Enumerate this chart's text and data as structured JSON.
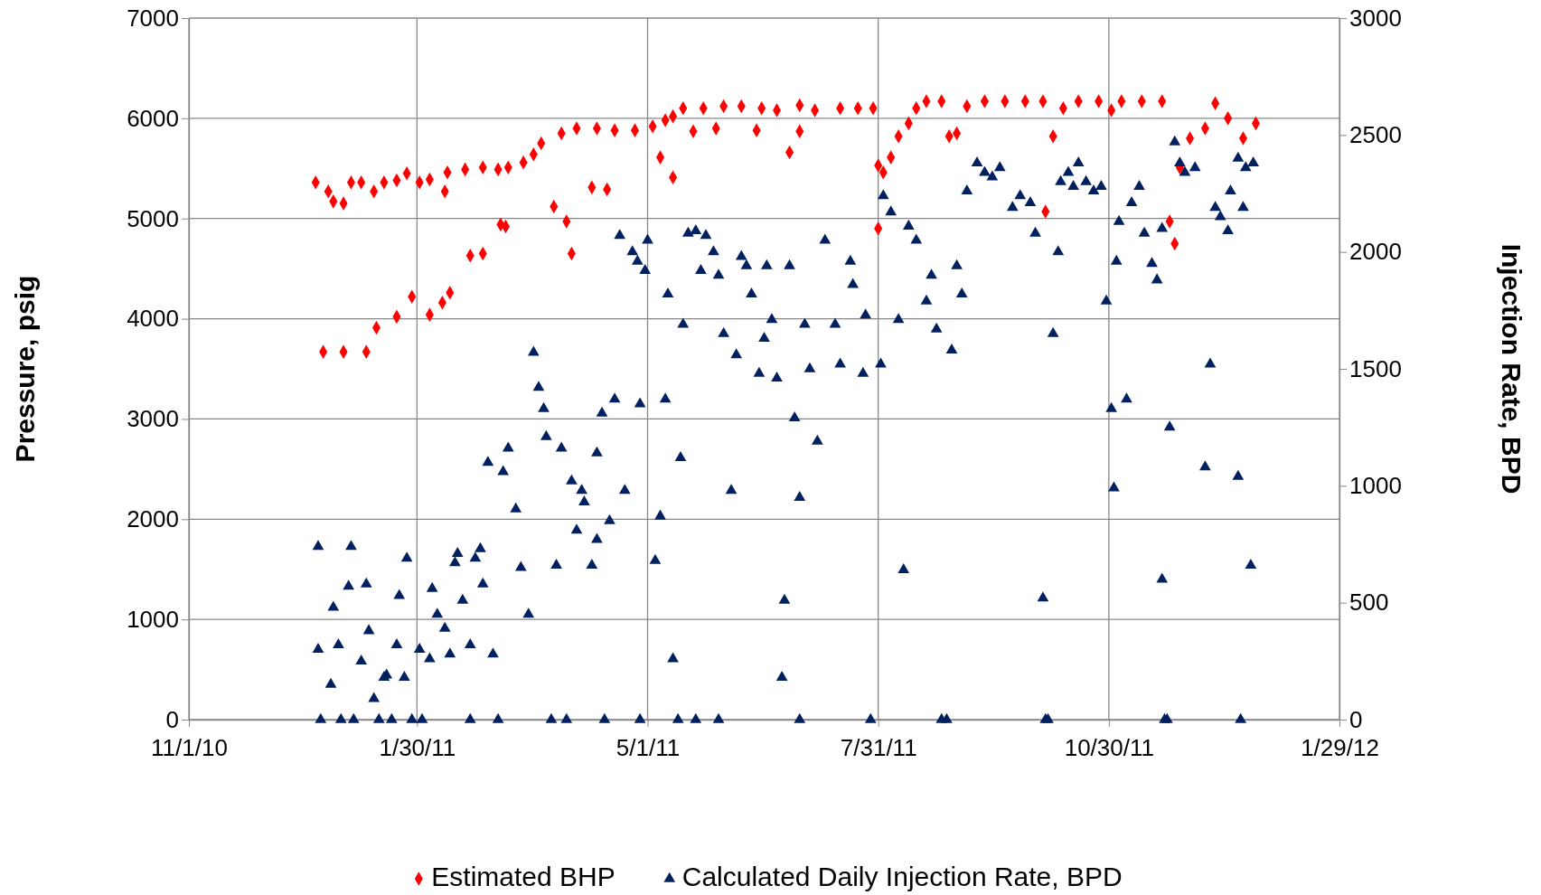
{
  "chart_data": {
    "type": "scatter",
    "xlabel": null,
    "ylabel": "Pressure, psig",
    "y2label": "Injection Rate, BPD",
    "xlim": [
      "2010-11-01",
      "2012-01-29"
    ],
    "xticks": [
      {
        "value": "2010-11-01",
        "label": "11/1/10"
      },
      {
        "value": "2011-01-30",
        "label": "1/30/11"
      },
      {
        "value": "2011-05-01",
        "label": "5/1/11"
      },
      {
        "value": "2011-07-31",
        "label": "7/31/11"
      },
      {
        "value": "2011-10-30",
        "label": "10/30/11"
      },
      {
        "value": "2012-01-29",
        "label": "1/29/12"
      }
    ],
    "ylim": [
      0,
      7000
    ],
    "yticks": [
      0,
      1000,
      2000,
      3000,
      4000,
      5000,
      6000,
      7000
    ],
    "y2lim": [
      0,
      3000
    ],
    "y2ticks": [
      0,
      500,
      1000,
      1500,
      2000,
      2500,
      3000
    ],
    "grid": true,
    "legend": "bottom",
    "series": [
      {
        "name": "Estimated BHP",
        "color": "#ff0000",
        "marker": "diamond",
        "x": [
          "2010-12-21",
          "2010-12-26",
          "2010-12-28",
          "2011-01-01",
          "2011-01-04",
          "2011-01-08",
          "2011-01-13",
          "2011-01-17",
          "2011-01-22",
          "2011-01-26",
          "2011-01-31",
          "2011-02-04",
          "2011-02-10",
          "2011-02-11",
          "2011-02-18",
          "2011-02-25",
          "2011-03-03",
          "2011-03-07",
          "2011-03-13",
          "2011-03-17",
          "2011-03-20",
          "2011-03-28",
          "2011-04-03",
          "2011-04-11",
          "2011-04-18",
          "2011-04-26",
          "2011-05-03",
          "2011-05-08",
          "2011-05-11",
          "2011-05-15",
          "2011-05-23",
          "2011-05-31",
          "2011-06-07",
          "2011-06-15",
          "2011-06-21",
          "2011-06-26",
          "2011-06-30",
          "2011-07-06",
          "2011-07-16",
          "2011-07-23",
          "2011-07-29",
          "2011-07-31",
          "2011-08-02",
          "2011-08-05",
          "2011-08-08",
          "2011-08-12",
          "2011-08-15",
          "2011-08-19",
          "2011-08-25",
          "2011-08-28",
          "2011-08-31",
          "2011-09-04",
          "2011-09-11",
          "2011-09-19",
          "2011-09-27",
          "2011-10-04",
          "2011-10-05",
          "2011-10-08",
          "2011-10-12",
          "2011-10-18",
          "2011-10-26",
          "2011-10-31",
          "2011-11-04",
          "2011-11-12",
          "2011-11-20",
          "2011-11-23",
          "2011-11-25",
          "2011-11-27",
          "2011-12-01",
          "2011-12-07",
          "2011-12-11",
          "2011-12-16",
          "2011-12-22",
          "2011-12-27",
          "2010-12-24",
          "2011-01-01",
          "2011-01-10",
          "2011-01-14",
          "2011-01-22",
          "2011-01-28",
          "2011-02-04",
          "2011-02-09",
          "2011-02-12",
          "2011-02-20",
          "2011-02-25",
          "2011-03-04",
          "2011-03-06",
          "2011-03-25",
          "2011-03-30",
          "2011-04-01",
          "2011-04-09",
          "2011-04-15",
          "2011-05-06",
          "2011-05-11",
          "2011-05-19",
          "2011-05-28",
          "2011-06-13",
          "2011-06-30",
          "2011-07-31"
        ],
        "values": [
          5360,
          5270,
          5170,
          5150,
          5360,
          5360,
          5270,
          5360,
          5380,
          5450,
          5360,
          5390,
          5270,
          5460,
          5490,
          5510,
          5490,
          5510,
          5560,
          5640,
          5750,
          5850,
          5900,
          5900,
          5880,
          5880,
          5920,
          5980,
          6020,
          6100,
          6100,
          6120,
          6120,
          6100,
          6080,
          5660,
          6130,
          6080,
          6100,
          6100,
          6100,
          5530,
          5460,
          5610,
          5820,
          5950,
          6100,
          6170,
          6170,
          5820,
          5850,
          6120,
          6170,
          6170,
          6170,
          6170,
          5070,
          5820,
          6100,
          6170,
          6170,
          6080,
          6170,
          6170,
          6170,
          4970,
          4750,
          5510,
          5800,
          5900,
          6150,
          6000,
          5800,
          5950,
          3670,
          3670,
          3670,
          3910,
          4020,
          4220,
          4040,
          4160,
          4260,
          4630,
          4650,
          4940,
          4920,
          5120,
          4970,
          4650,
          5310,
          5290,
          5610,
          5410,
          5870,
          5900,
          5880,
          5870,
          4900
        ]
      },
      {
        "name": "Calculated Daily Injection Rate, BPD",
        "color": "#002060",
        "marker": "triangle",
        "axis": "y2",
        "x": [
          "2010-12-22",
          "2010-12-22",
          "2010-12-23",
          "2010-12-27",
          "2010-12-28",
          "2010-12-30",
          "2010-12-31",
          "2011-01-03",
          "2011-01-04",
          "2011-01-05",
          "2011-01-08",
          "2011-01-10",
          "2011-01-11",
          "2011-01-13",
          "2011-01-15",
          "2011-01-17",
          "2011-01-18",
          "2011-01-20",
          "2011-01-22",
          "2011-01-23",
          "2011-01-25",
          "2011-01-26",
          "2011-01-28",
          "2011-01-31",
          "2011-02-01",
          "2011-02-04",
          "2011-02-05",
          "2011-02-07",
          "2011-02-10",
          "2011-02-12",
          "2011-02-14",
          "2011-02-15",
          "2011-02-17",
          "2011-02-20",
          "2011-02-22",
          "2011-02-24",
          "2011-02-25",
          "2011-02-27",
          "2011-03-01",
          "2011-03-03",
          "2011-03-05",
          "2011-03-07",
          "2011-03-10",
          "2011-03-12",
          "2011-03-15",
          "2011-03-17",
          "2011-03-19",
          "2011-03-21",
          "2011-03-22",
          "2011-03-24",
          "2011-03-26",
          "2011-03-28",
          "2011-03-30",
          "2011-04-01",
          "2011-04-03",
          "2011-04-05",
          "2011-04-06",
          "2011-04-09",
          "2011-04-11",
          "2011-04-11",
          "2011-04-13",
          "2011-04-16",
          "2011-04-18",
          "2011-04-20",
          "2011-04-22",
          "2011-04-25",
          "2011-04-27",
          "2011-04-28",
          "2011-04-30",
          "2011-05-01",
          "2011-05-04",
          "2011-05-06",
          "2011-05-08",
          "2011-05-09",
          "2011-05-11",
          "2011-05-13",
          "2011-05-14",
          "2011-05-15",
          "2011-05-17",
          "2011-05-20",
          "2011-05-22",
          "2011-05-24",
          "2011-05-27",
          "2011-05-29",
          "2011-05-31",
          "2011-06-03",
          "2011-06-05",
          "2011-06-07",
          "2011-06-09",
          "2011-06-11",
          "2011-06-14",
          "2011-06-16",
          "2011-06-17",
          "2011-06-19",
          "2011-06-21",
          "2011-06-23",
          "2011-06-24",
          "2011-06-26",
          "2011-06-28",
          "2011-06-30",
          "2011-07-02",
          "2011-07-04",
          "2011-07-07",
          "2011-07-10",
          "2011-07-14",
          "2011-07-16",
          "2011-07-20",
          "2011-07-21",
          "2011-07-25",
          "2011-07-26",
          "2011-07-28",
          "2011-08-01",
          "2011-08-02",
          "2011-08-05",
          "2011-08-08",
          "2011-08-10",
          "2011-08-12",
          "2011-08-15",
          "2011-08-19",
          "2011-08-21",
          "2011-08-23",
          "2011-08-25",
          "2011-08-29",
          "2011-08-31",
          "2011-09-02",
          "2011-09-04",
          "2011-09-08",
          "2011-09-11",
          "2011-09-14",
          "2011-09-17",
          "2011-09-22",
          "2011-09-25",
          "2011-09-29",
          "2011-10-01",
          "2011-10-04",
          "2011-10-06",
          "2011-10-08",
          "2011-10-10",
          "2011-10-11",
          "2011-10-14",
          "2011-10-16",
          "2011-10-18",
          "2011-10-21",
          "2011-10-24",
          "2011-10-27",
          "2011-10-29",
          "2011-10-31",
          "2011-11-01",
          "2011-11-02",
          "2011-11-03",
          "2011-11-06",
          "2011-11-08",
          "2011-11-11",
          "2011-11-13",
          "2011-11-16",
          "2011-11-18",
          "2011-11-20",
          "2011-11-20",
          "2011-11-21",
          "2011-11-23",
          "2011-11-25",
          "2011-11-27",
          "2011-11-29",
          "2011-12-03",
          "2011-12-07",
          "2011-12-09",
          "2011-12-11",
          "2011-12-13",
          "2011-12-16",
          "2011-12-17",
          "2011-12-20",
          "2011-12-20",
          "2011-12-21",
          "2011-12-22",
          "2011-12-23",
          "2011-12-25",
          "2011-12-26",
          "2011-02-20",
          "2011-04-14",
          "2011-04-28",
          "2011-05-20",
          "2011-05-29",
          "2011-06-30",
          "2011-08-27",
          "2011-10-05",
          "2011-11-22"
        ],
        "values": [
          740,
          300,
          0,
          150,
          480,
          320,
          0,
          570,
          740,
          0,
          250,
          580,
          380,
          90,
          0,
          180,
          190,
          0,
          320,
          530,
          180,
          690,
          0,
          300,
          0,
          260,
          560,
          450,
          390,
          280,
          670,
          710,
          510,
          320,
          690,
          730,
          580,
          1100,
          280,
          0,
          1060,
          1160,
          900,
          650,
          450,
          1570,
          1420,
          1330,
          1210,
          0,
          660,
          1160,
          0,
          1020,
          810,
          980,
          930,
          660,
          770,
          1140,
          1310,
          850,
          1370,
          2070,
          980,
          2000,
          1960,
          1350,
          1920,
          2050,
          680,
          870,
          1370,
          1820,
          260,
          0,
          1120,
          1690,
          2080,
          2090,
          1920,
          2070,
          2000,
          1900,
          1650,
          980,
          1560,
          1980,
          1940,
          1820,
          1480,
          1630,
          1940,
          1710,
          1460,
          180,
          510,
          1940,
          1290,
          950,
          1690,
          1500,
          1190,
          2050,
          1690,
          1520,
          1960,
          1860,
          1480,
          1730,
          0,
          1520,
          2240,
          2170,
          1710,
          640,
          2110,
          2050,
          1790,
          1900,
          1670,
          0,
          1580,
          1940,
          1820,
          2260,
          2380,
          2340,
          2320,
          2360,
          2190,
          2240,
          2210,
          2080,
          520,
          0,
          1650,
          2000,
          2300,
          2340,
          2280,
          2380,
          2300,
          2260,
          2280,
          1790,
          1330,
          990,
          1960,
          2130,
          1370,
          2210,
          2280,
          2080,
          1950,
          1880,
          2100,
          600,
          0,
          1250,
          2470,
          2380,
          2340,
          2360,
          1080,
          1520,
          2190,
          2150,
          2090,
          2260,
          2400,
          1040,
          0,
          2190,
          2360,
          660,
          2380,
          0,
          0,
          0,
          0,
          0,
          0,
          0,
          0,
          0
        ]
      }
    ]
  }
}
